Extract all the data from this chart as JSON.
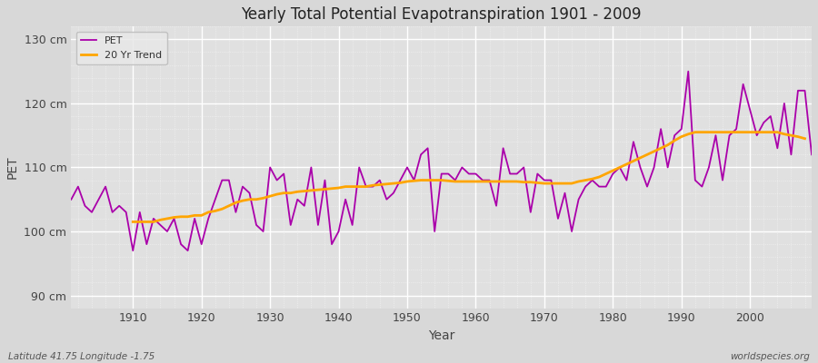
{
  "title": "Yearly Total Potential Evapotranspiration 1901 - 2009",
  "xlabel": "Year",
  "ylabel": "PET",
  "bottom_left_label": "Latitude 41.75 Longitude -1.75",
  "bottom_right_label": "worldspecies.org",
  "ylim": [
    88,
    132
  ],
  "yticks": [
    90,
    100,
    110,
    120,
    130
  ],
  "ytick_labels": [
    "90 cm",
    "100 cm",
    "110 cm",
    "120 cm",
    "130 cm"
  ],
  "pet_color": "#AA00AA",
  "trend_color": "#FFA500",
  "background_color": "#D8D8D8",
  "plot_bg_color": "#E0E0E0",
  "legend_bg": "#E8E8E8",
  "pet_linewidth": 1.3,
  "trend_linewidth": 2.0,
  "years": [
    1901,
    1902,
    1903,
    1904,
    1905,
    1906,
    1907,
    1908,
    1909,
    1910,
    1911,
    1912,
    1913,
    1914,
    1915,
    1916,
    1917,
    1918,
    1919,
    1920,
    1921,
    1922,
    1923,
    1924,
    1925,
    1926,
    1927,
    1928,
    1929,
    1930,
    1931,
    1932,
    1933,
    1934,
    1935,
    1936,
    1937,
    1938,
    1939,
    1940,
    1941,
    1942,
    1943,
    1944,
    1945,
    1946,
    1947,
    1948,
    1949,
    1950,
    1951,
    1952,
    1953,
    1954,
    1955,
    1956,
    1957,
    1958,
    1959,
    1960,
    1961,
    1962,
    1963,
    1964,
    1965,
    1966,
    1967,
    1968,
    1969,
    1970,
    1971,
    1972,
    1973,
    1974,
    1975,
    1976,
    1977,
    1978,
    1979,
    1980,
    1981,
    1982,
    1983,
    1984,
    1985,
    1986,
    1987,
    1988,
    1989,
    1990,
    1991,
    1992,
    1993,
    1994,
    1995,
    1996,
    1997,
    1998,
    1999,
    2000,
    2001,
    2002,
    2003,
    2004,
    2005,
    2006,
    2007,
    2008,
    2009
  ],
  "pet_values": [
    105,
    107,
    104,
    103,
    105,
    107,
    103,
    104,
    103,
    97,
    103,
    98,
    102,
    101,
    100,
    102,
    98,
    97,
    102,
    98,
    102,
    105,
    108,
    108,
    103,
    107,
    106,
    101,
    100,
    110,
    108,
    109,
    101,
    105,
    104,
    110,
    101,
    108,
    98,
    100,
    105,
    101,
    110,
    107,
    107,
    108,
    105,
    106,
    108,
    110,
    108,
    112,
    113,
    100,
    109,
    109,
    108,
    110,
    109,
    109,
    108,
    108,
    104,
    113,
    109,
    109,
    110,
    103,
    109,
    108,
    108,
    102,
    106,
    100,
    105,
    107,
    108,
    107,
    107,
    109,
    110,
    108,
    114,
    110,
    107,
    110,
    116,
    110,
    115,
    116,
    125,
    108,
    107,
    110,
    115,
    108,
    115,
    116,
    123,
    119,
    115,
    117,
    118,
    113,
    120,
    112,
    122,
    122,
    112
  ],
  "trend_values": [
    null,
    null,
    null,
    null,
    null,
    null,
    null,
    null,
    null,
    101.5,
    101.5,
    101.5,
    101.5,
    101.8,
    102.0,
    102.2,
    102.3,
    102.3,
    102.5,
    102.5,
    103.0,
    103.2,
    103.5,
    104.0,
    104.5,
    104.8,
    105.0,
    105.0,
    105.2,
    105.5,
    105.8,
    106.0,
    106.0,
    106.2,
    106.3,
    106.4,
    106.5,
    106.6,
    106.7,
    106.8,
    107.0,
    107.0,
    107.0,
    107.0,
    107.2,
    107.3,
    107.4,
    107.5,
    107.6,
    107.8,
    107.9,
    108.0,
    108.0,
    108.0,
    108.0,
    107.9,
    107.8,
    107.8,
    107.8,
    107.8,
    107.8,
    107.8,
    107.8,
    107.8,
    107.8,
    107.8,
    107.7,
    107.7,
    107.6,
    107.5,
    107.5,
    107.5,
    107.5,
    107.5,
    107.8,
    108.0,
    108.2,
    108.5,
    109.0,
    109.5,
    110.0,
    110.5,
    111.0,
    111.5,
    112.0,
    112.5,
    113.0,
    113.5,
    114.2,
    114.8,
    115.2,
    115.5,
    115.5,
    115.5,
    115.5,
    115.5,
    115.5,
    115.5,
    115.5,
    115.5,
    115.5,
    115.5,
    115.5,
    115.5,
    115.2,
    115.0,
    114.8,
    114.5
  ]
}
